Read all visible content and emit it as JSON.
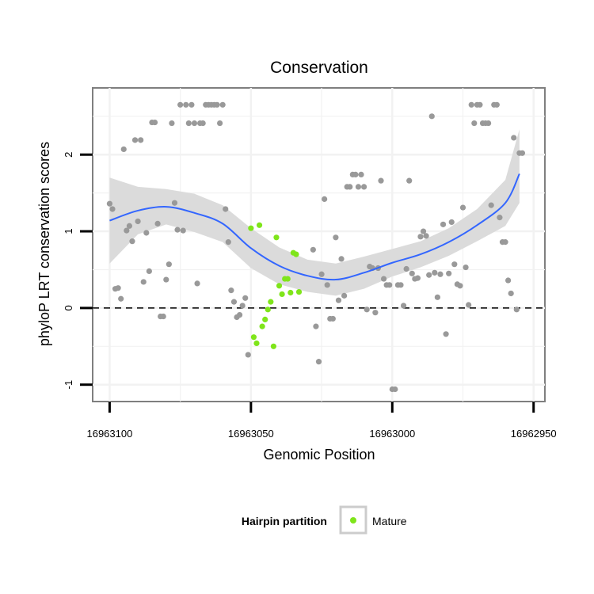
{
  "chart_data": {
    "type": "scatter",
    "title": "Conservation",
    "xlabel": "Genomic Position",
    "ylabel": "phyloP LRT conservation scores",
    "x_reversed": true,
    "xlim": [
      16963106,
      16962946
    ],
    "ylim": [
      -1.22,
      2.87
    ],
    "x_ticks": [
      16963100,
      16963050,
      16963000,
      16962950
    ],
    "y_ticks": [
      -1,
      0,
      1,
      2
    ],
    "reference_line": {
      "y": 0,
      "style": "dashed"
    },
    "legend": {
      "title": "Hairpin partition",
      "entries": [
        "Mature"
      ],
      "placement": "bottom"
    },
    "colors": {
      "other_points": "#999999",
      "mature_points": "#7fe51a",
      "smooth_line": "#3366ff",
      "ribbon": "#d9d9d9",
      "panel_border": "#7f7f7f",
      "grid": "#f2f2f2"
    },
    "series": [
      {
        "name": "Other",
        "points": [
          [
            16963100,
            1.36
          ],
          [
            16963099,
            1.29
          ],
          [
            16963098,
            0.25
          ],
          [
            16963097,
            0.26
          ],
          [
            16963096,
            0.12
          ],
          [
            16963095,
            2.07
          ],
          [
            16963094,
            1.01
          ],
          [
            16963093,
            1.07
          ],
          [
            16963092,
            0.87
          ],
          [
            16963091,
            2.19
          ],
          [
            16963090,
            1.13
          ],
          [
            16963089,
            2.19
          ],
          [
            16963088,
            0.34
          ],
          [
            16963087,
            0.98
          ],
          [
            16963086,
            0.48
          ],
          [
            16963085,
            2.42
          ],
          [
            16963084,
            2.42
          ],
          [
            16963083,
            1.1
          ],
          [
            16963082,
            -0.11
          ],
          [
            16963081,
            -0.11
          ],
          [
            16963080,
            0.37
          ],
          [
            16963079,
            0.57
          ],
          [
            16963078,
            2.41
          ],
          [
            16963077,
            1.37
          ],
          [
            16963076,
            1.02
          ],
          [
            16963075,
            2.65
          ],
          [
            16963074,
            1.01
          ],
          [
            16963073,
            2.65
          ],
          [
            16963072,
            2.41
          ],
          [
            16963071,
            2.65
          ],
          [
            16963070,
            2.41
          ],
          [
            16963069,
            0.32
          ],
          [
            16963068,
            2.41
          ],
          [
            16963067,
            2.41
          ],
          [
            16963066,
            2.65
          ],
          [
            16963065,
            2.65
          ],
          [
            16963064,
            2.65
          ],
          [
            16963063,
            2.65
          ],
          [
            16963062,
            2.65
          ],
          [
            16963061,
            2.41
          ],
          [
            16963060,
            2.65
          ],
          [
            16963059,
            1.29
          ],
          [
            16963058,
            0.86
          ],
          [
            16963057,
            0.23
          ],
          [
            16963056,
            0.08
          ],
          [
            16963055,
            -0.12
          ],
          [
            16963054,
            -0.09
          ],
          [
            16963053,
            0.03
          ],
          [
            16963052,
            0.13
          ],
          [
            16963051,
            -0.61
          ],
          [
            16963028,
            0.76
          ],
          [
            16963027,
            -0.24
          ],
          [
            16963026,
            -0.7
          ],
          [
            16963025,
            0.44
          ],
          [
            16963024,
            1.42
          ],
          [
            16963023,
            0.3
          ],
          [
            16963022,
            -0.14
          ],
          [
            16963021,
            -0.14
          ],
          [
            16963020,
            0.92
          ],
          [
            16963019,
            0.1
          ],
          [
            16963018,
            0.64
          ],
          [
            16963017,
            0.16
          ],
          [
            16963016,
            1.58
          ],
          [
            16963015,
            1.58
          ],
          [
            16963014,
            1.74
          ],
          [
            16963013,
            1.74
          ],
          [
            16963012,
            1.58
          ],
          [
            16963011,
            1.74
          ],
          [
            16963010,
            1.58
          ],
          [
            16963009,
            -0.02
          ],
          [
            16963008,
            0.54
          ],
          [
            16963007,
            0.52
          ],
          [
            16963006,
            -0.06
          ],
          [
            16963005,
            0.52
          ],
          [
            16963004,
            1.66
          ],
          [
            16963003,
            0.38
          ],
          [
            16963002,
            0.3
          ],
          [
            16963001,
            0.3
          ],
          [
            16963000,
            -1.06
          ],
          [
            16962999,
            -1.06
          ],
          [
            16962998,
            0.3
          ],
          [
            16962997,
            0.3
          ],
          [
            16962996,
            0.03
          ],
          [
            16962995,
            0.51
          ],
          [
            16962994,
            1.66
          ],
          [
            16962993,
            0.45
          ],
          [
            16962992,
            0.38
          ],
          [
            16962991,
            0.39
          ],
          [
            16962990,
            0.93
          ],
          [
            16962989,
            1.0
          ],
          [
            16962988,
            0.94
          ],
          [
            16962987,
            0.43
          ],
          [
            16962986,
            2.5
          ],
          [
            16962985,
            0.46
          ],
          [
            16962984,
            0.14
          ],
          [
            16962983,
            0.44
          ],
          [
            16962982,
            1.09
          ],
          [
            16962981,
            -0.34
          ],
          [
            16962980,
            0.45
          ],
          [
            16962979,
            1.12
          ],
          [
            16962978,
            0.57
          ],
          [
            16962977,
            0.31
          ],
          [
            16962976,
            0.29
          ],
          [
            16962975,
            1.31
          ],
          [
            16962974,
            0.53
          ],
          [
            16962973,
            0.04
          ],
          [
            16962972,
            2.65
          ],
          [
            16962971,
            2.41
          ],
          [
            16962970,
            2.65
          ],
          [
            16962969,
            2.65
          ],
          [
            16962968,
            2.41
          ],
          [
            16962967,
            2.41
          ],
          [
            16962966,
            2.41
          ],
          [
            16962965,
            1.34
          ],
          [
            16962964,
            2.65
          ],
          [
            16962963,
            2.65
          ],
          [
            16962962,
            1.18
          ],
          [
            16962961,
            0.86
          ],
          [
            16962960,
            0.86
          ],
          [
            16962959,
            0.36
          ],
          [
            16962958,
            0.19
          ],
          [
            16962957,
            2.22
          ],
          [
            16962956,
            -0.02
          ],
          [
            16962955,
            2.02
          ],
          [
            16962954,
            2.02
          ]
        ]
      },
      {
        "name": "Mature",
        "points": [
          [
            16963050,
            1.04
          ],
          [
            16963049,
            -0.38
          ],
          [
            16963048,
            -0.46
          ],
          [
            16963047,
            1.08
          ],
          [
            16963046,
            -0.24
          ],
          [
            16963045,
            -0.15
          ],
          [
            16963044,
            -0.02
          ],
          [
            16963043,
            0.08
          ],
          [
            16963042,
            -0.5
          ],
          [
            16963041,
            0.92
          ],
          [
            16963040,
            0.29
          ],
          [
            16963039,
            0.18
          ],
          [
            16963038,
            0.38
          ],
          [
            16963037,
            0.38
          ],
          [
            16963036,
            0.2
          ],
          [
            16963035,
            0.72
          ],
          [
            16963034,
            0.7
          ],
          [
            16963033,
            0.21
          ]
        ]
      }
    ],
    "smooth_fit": {
      "x": [
        16963100,
        16963090,
        16963080,
        16963070,
        16963060,
        16963050,
        16963040,
        16963030,
        16963020,
        16963010,
        16963000,
        16962990,
        16962980,
        16962970,
        16962960,
        16962955
      ],
      "y": [
        1.14,
        1.27,
        1.32,
        1.24,
        1.1,
        0.78,
        0.55,
        0.42,
        0.37,
        0.46,
        0.59,
        0.7,
        0.86,
        1.08,
        1.37,
        1.75
      ],
      "lower": [
        0.58,
        0.96,
        1.09,
        0.99,
        0.86,
        0.52,
        0.31,
        0.21,
        0.16,
        0.25,
        0.41,
        0.53,
        0.68,
        0.87,
        1.07,
        1.37
      ],
      "upper": [
        1.7,
        1.58,
        1.55,
        1.49,
        1.34,
        1.04,
        0.79,
        0.63,
        0.58,
        0.67,
        0.77,
        0.87,
        1.04,
        1.29,
        1.67,
        2.33
      ]
    }
  }
}
